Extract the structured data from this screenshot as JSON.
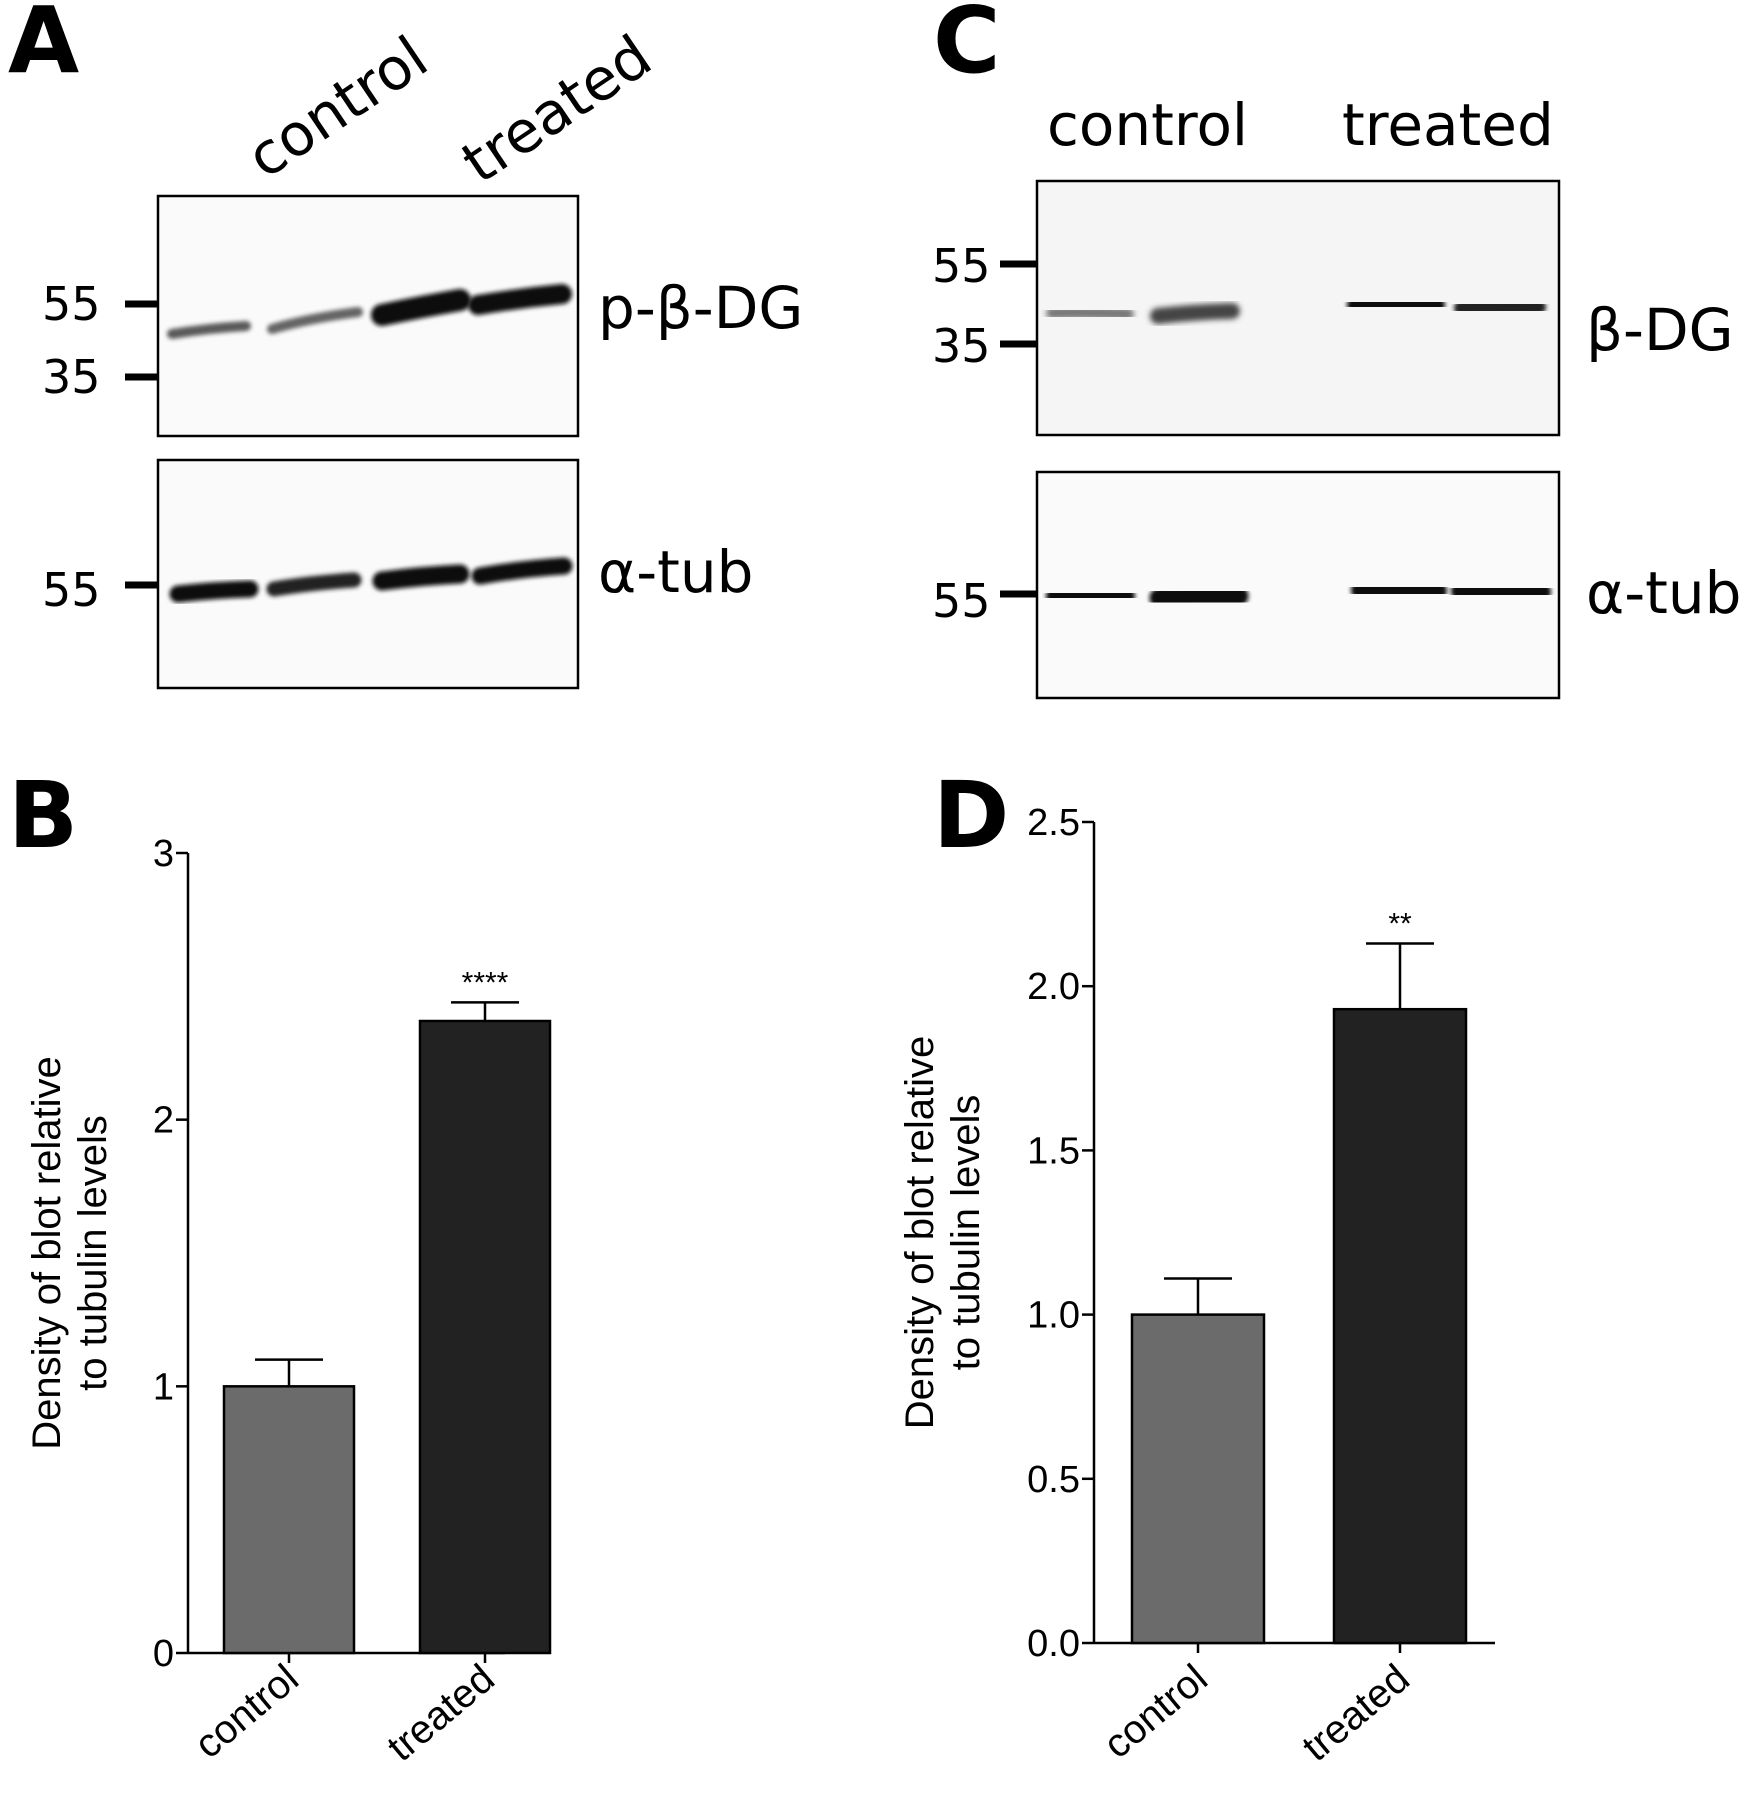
{
  "panels": {
    "A": {
      "letter": "A",
      "lane_labels": [
        "control",
        "treated"
      ],
      "blots": [
        {
          "target": "p-β-DG",
          "markers": [
            "55",
            "35"
          ]
        },
        {
          "target": "α-tub",
          "markers": [
            "55"
          ]
        }
      ]
    },
    "C": {
      "letter": "C",
      "lane_labels": [
        "control",
        "treated"
      ],
      "blots": [
        {
          "target": "β-DG",
          "markers": [
            "55",
            "35"
          ]
        },
        {
          "target": "α-tub",
          "markers": [
            "55"
          ]
        }
      ]
    },
    "B": {
      "letter": "B"
    },
    "D": {
      "letter": "D"
    }
  },
  "colors": {
    "control_bar": "#6b6b6b",
    "treated_bar": "#222222",
    "axis": "#000000"
  },
  "chart_data": [
    {
      "panel": "B",
      "type": "bar",
      "categories": [
        "control",
        "treated"
      ],
      "values": [
        1.0,
        2.37
      ],
      "errors": [
        0.1,
        0.07
      ],
      "significance": [
        "",
        "****"
      ],
      "ylabel": [
        "Density of blot relative",
        "to tubulin levels"
      ],
      "ylim": [
        0,
        3
      ],
      "yticks": [
        "0",
        "1",
        "2",
        "3"
      ],
      "ytick_values": [
        0,
        1,
        2,
        3
      ],
      "grid": false
    },
    {
      "panel": "D",
      "type": "bar",
      "categories": [
        "control",
        "treated"
      ],
      "values": [
        1.0,
        1.93
      ],
      "errors": [
        0.11,
        0.2
      ],
      "significance": [
        "",
        "**"
      ],
      "ylabel": [
        "Density of blot relative",
        "to tubulin levels"
      ],
      "ylim": [
        0,
        2.5
      ],
      "yticks": [
        "0.0",
        "0.5",
        "1.0",
        "1.5",
        "2.0",
        "2.5"
      ],
      "ytick_values": [
        0,
        0.5,
        1.0,
        1.5,
        2.0,
        2.5
      ],
      "grid": false
    }
  ]
}
